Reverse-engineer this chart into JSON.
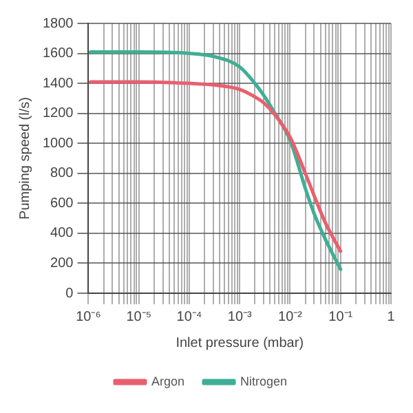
{
  "chart_data": {
    "type": "line",
    "xlabel": "Inlet pressure (mbar)",
    "ylabel": "Pumping speed (l/s)",
    "log": "x",
    "grid": true,
    "legend": "bottom",
    "marker": "none",
    "line_style": "solid",
    "xlim": [
      1e-06,
      1
    ],
    "ylim": [
      0,
      1800
    ],
    "yticks": [
      0,
      200,
      400,
      600,
      800,
      1000,
      1200,
      1400,
      1600,
      1800
    ],
    "xticks": [
      {
        "value": 1e-06,
        "label": "10⁻⁶"
      },
      {
        "value": 2e-06,
        "label": null
      },
      {
        "value": 3e-06,
        "label": null
      },
      {
        "value": 4e-06,
        "label": null
      },
      {
        "value": 5e-06,
        "label": null
      },
      {
        "value": 6e-06,
        "label": null
      },
      {
        "value": 7e-06,
        "label": null
      },
      {
        "value": 8e-06,
        "label": null
      },
      {
        "value": 9e-06,
        "label": null
      },
      {
        "value": 1e-05,
        "label": "10⁻⁵"
      },
      {
        "value": 2e-05,
        "label": null
      },
      {
        "value": 3e-05,
        "label": null
      },
      {
        "value": 4e-05,
        "label": null
      },
      {
        "value": 5e-05,
        "label": null
      },
      {
        "value": 6e-05,
        "label": null
      },
      {
        "value": 7e-05,
        "label": null
      },
      {
        "value": 8e-05,
        "label": null
      },
      {
        "value": 9e-05,
        "label": null
      },
      {
        "value": 0.0001,
        "label": "10⁻⁴"
      },
      {
        "value": 0.0002,
        "label": null
      },
      {
        "value": 0.0003,
        "label": null
      },
      {
        "value": 0.0004,
        "label": null
      },
      {
        "value": 0.0005,
        "label": null
      },
      {
        "value": 0.0006,
        "label": null
      },
      {
        "value": 0.0007,
        "label": null
      },
      {
        "value": 0.0008,
        "label": null
      },
      {
        "value": 0.0009,
        "label": null
      },
      {
        "value": 0.001,
        "label": "10⁻³"
      },
      {
        "value": 0.002,
        "label": null
      },
      {
        "value": 0.003,
        "label": null
      },
      {
        "value": 0.004,
        "label": null
      },
      {
        "value": 0.005,
        "label": null
      },
      {
        "value": 0.006,
        "label": null
      },
      {
        "value": 0.007,
        "label": null
      },
      {
        "value": 0.008,
        "label": null
      },
      {
        "value": 0.009,
        "label": null
      },
      {
        "value": 0.01,
        "label": "10⁻²"
      },
      {
        "value": 0.02,
        "label": null
      },
      {
        "value": 0.03,
        "label": null
      },
      {
        "value": 0.04,
        "label": null
      },
      {
        "value": 0.05,
        "label": null
      },
      {
        "value": 0.06,
        "label": null
      },
      {
        "value": 0.07,
        "label": null
      },
      {
        "value": 0.08,
        "label": null
      },
      {
        "value": 0.09,
        "label": null
      },
      {
        "value": 0.1,
        "label": "10⁻¹"
      },
      {
        "value": 0.2,
        "label": null
      },
      {
        "value": 0.3,
        "label": null
      },
      {
        "value": 0.4,
        "label": null
      },
      {
        "value": 0.5,
        "label": null
      },
      {
        "value": 0.6,
        "label": null
      },
      {
        "value": 0.7,
        "label": null
      },
      {
        "value": 0.8,
        "label": null
      },
      {
        "value": 0.9,
        "label": null
      },
      {
        "value": 1,
        "label": "1"
      }
    ],
    "series": [
      {
        "name": "Argon",
        "color": "#e8606e",
        "x": [
          1.1e-06,
          1e-05,
          0.0001,
          0.0003,
          0.001,
          0.002,
          0.003,
          0.005,
          0.01,
          0.02,
          0.03,
          0.05,
          0.1
        ],
        "values": [
          1410,
          1410,
          1400,
          1390,
          1360,
          1310,
          1270,
          1190,
          1040,
          800,
          650,
          470,
          280
        ]
      },
      {
        "name": "Nitrogen",
        "color": "#3fae95",
        "x": [
          1.1e-06,
          1e-05,
          0.0001,
          0.0003,
          0.001,
          0.002,
          0.003,
          0.005,
          0.01,
          0.02,
          0.03,
          0.05,
          0.1
        ],
        "values": [
          1610,
          1610,
          1600,
          1580,
          1510,
          1400,
          1320,
          1200,
          1020,
          700,
          530,
          360,
          160
        ]
      }
    ]
  }
}
